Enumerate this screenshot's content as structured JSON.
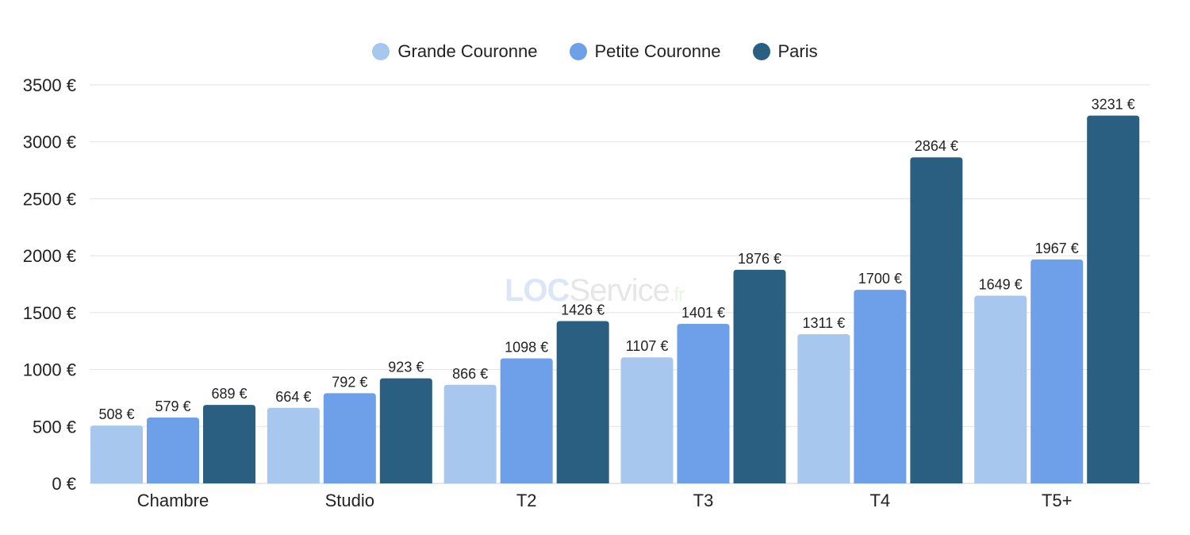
{
  "chart_data": {
    "type": "bar",
    "title": "",
    "xlabel": "",
    "ylabel": "",
    "categories": [
      "Chambre",
      "Studio",
      "T2",
      "T3",
      "T4",
      "T5+"
    ],
    "series": [
      {
        "name": "Grande Couronne",
        "color": "#a7c7ee",
        "values": [
          508,
          664,
          866,
          1107,
          1311,
          1649
        ]
      },
      {
        "name": "Petite Couronne",
        "color": "#6e9fe9",
        "values": [
          579,
          792,
          1098,
          1401,
          1700,
          1967
        ]
      },
      {
        "name": "Paris",
        "color": "#2a5f82",
        "values": [
          689,
          923,
          1426,
          1876,
          2864,
          3231
        ]
      }
    ],
    "ylim": [
      0,
      3500
    ],
    "yticks": [
      0,
      500,
      1000,
      1500,
      2000,
      2500,
      3000,
      3500
    ],
    "unit_suffix": " €",
    "grid": true,
    "legend_position": "top-center",
    "data_labels": true
  },
  "watermark": {
    "part1": "LOC",
    "part2": "Service",
    "part3": ".fr"
  }
}
